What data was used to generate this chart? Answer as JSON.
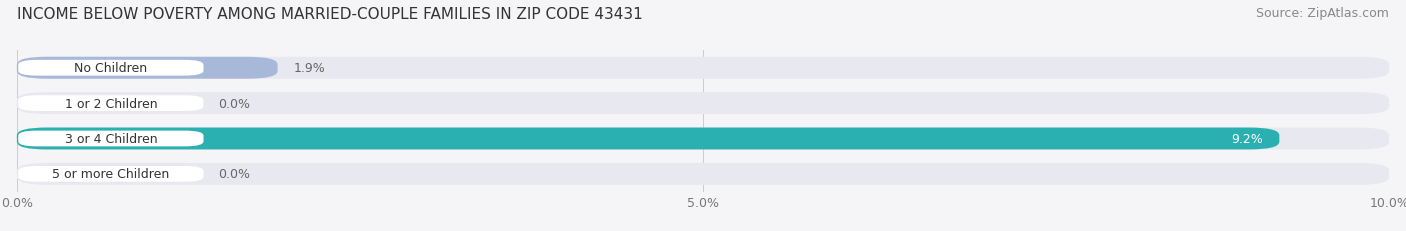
{
  "title": "INCOME BELOW POVERTY AMONG MARRIED-COUPLE FAMILIES IN ZIP CODE 43431",
  "source": "Source: ZipAtlas.com",
  "categories": [
    "No Children",
    "1 or 2 Children",
    "3 or 4 Children",
    "5 or more Children"
  ],
  "values": [
    1.9,
    0.0,
    9.2,
    0.0
  ],
  "bar_colors": [
    "#a8b8d8",
    "#c8a0b8",
    "#2ab0b0",
    "#b0b4e0"
  ],
  "bar_bg_color": "#e8e8f0",
  "xlim": [
    0,
    10.0
  ],
  "xticks": [
    0.0,
    5.0,
    10.0
  ],
  "xtick_labels": [
    "0.0%",
    "5.0%",
    "10.0%"
  ],
  "value_label_color_inside": "#ffffff",
  "value_label_color_outside": "#666666",
  "title_fontsize": 11,
  "source_fontsize": 9,
  "bar_label_fontsize": 9,
  "tick_fontsize": 9,
  "bar_height": 0.62,
  "background_color": "#f5f5f8"
}
